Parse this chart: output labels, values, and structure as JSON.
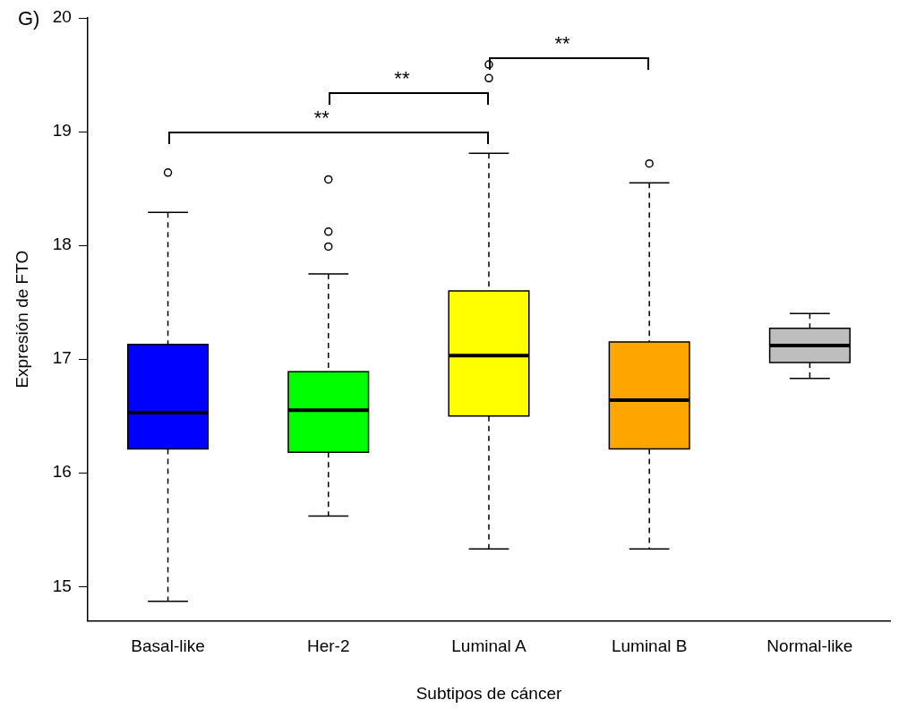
{
  "chart_data": {
    "type": "box",
    "xlabel": "Subtipos de cáncer",
    "ylabel": "Expresión de FTO",
    "categories": [
      "Basal-like",
      "Her-2",
      "Luminal A",
      "Luminal B",
      "Normal-like"
    ],
    "colors": [
      "#0000ff",
      "#00ff00",
      "#ffff00",
      "#ffa500",
      "#bebebe"
    ],
    "boxes": [
      {
        "low": 14.87,
        "q1": 16.21,
        "median": 16.53,
        "q3": 17.13,
        "high": 18.29,
        "outliers": [
          18.64
        ]
      },
      {
        "low": 15.62,
        "q1": 16.18,
        "median": 16.55,
        "q3": 16.89,
        "high": 17.75,
        "outliers": [
          18.58,
          18.12,
          17.99
        ]
      },
      {
        "low": 15.33,
        "q1": 16.5,
        "median": 17.03,
        "q3": 17.6,
        "high": 18.81,
        "outliers": [
          19.59,
          19.47
        ]
      },
      {
        "low": 15.33,
        "q1": 16.21,
        "median": 16.64,
        "q3": 17.15,
        "high": 18.55,
        "outliers": [
          18.72
        ]
      },
      {
        "low": 16.83,
        "q1": 16.97,
        "median": 17.12,
        "q3": 17.27,
        "high": 17.4
      }
    ],
    "ylim": [
      14.7,
      20
    ],
    "yticks": [
      15,
      16,
      17,
      18,
      19,
      20
    ],
    "grid": false,
    "legend": false,
    "annotations": [
      "G)",
      "**",
      "**",
      "**"
    ]
  }
}
